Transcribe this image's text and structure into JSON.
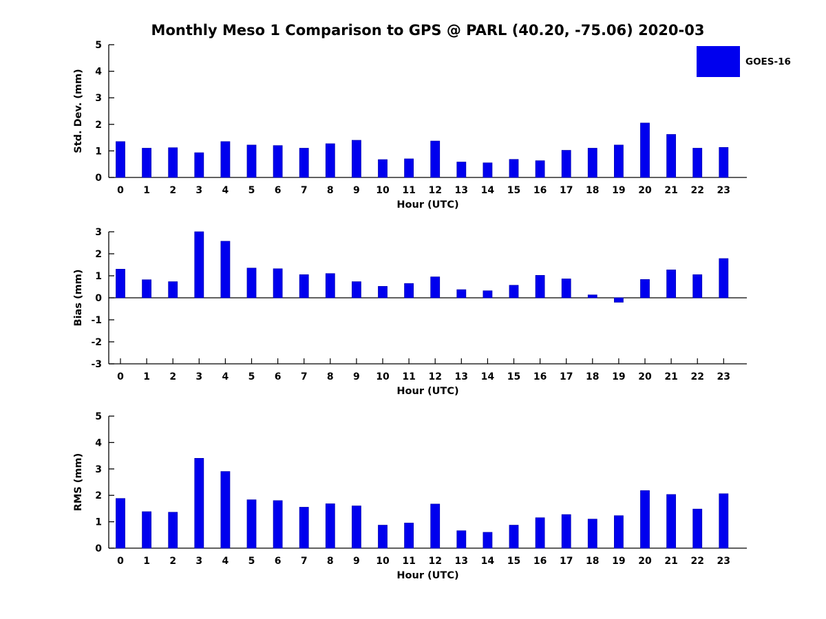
{
  "figure": {
    "title": "Monthly Meso 1 Comparison to GPS @ PARL (40.20, -75.06) 2020-03",
    "legend": {
      "label": "GOES-16",
      "color": "#0000ee",
      "position": "upper-right"
    },
    "bar_color": "#0000ee",
    "bar_edge_color": "#0000b4",
    "axis_color": "#000000",
    "background": "#ffffff"
  },
  "chart_data": [
    {
      "type": "bar",
      "title": "",
      "ylabel": "Std. Dev. (mm)",
      "xlabel": "Hour (UTC)",
      "categories": [
        "0",
        "1",
        "2",
        "3",
        "4",
        "5",
        "6",
        "7",
        "8",
        "9",
        "10",
        "11",
        "12",
        "13",
        "14",
        "15",
        "16",
        "17",
        "18",
        "19",
        "20",
        "21",
        "22",
        "23"
      ],
      "series": [
        {
          "name": "GOES-16",
          "values": [
            1.35,
            1.1,
            1.12,
            0.93,
            1.35,
            1.22,
            1.2,
            1.1,
            1.27,
            1.4,
            0.67,
            0.7,
            1.37,
            0.58,
            0.55,
            0.68,
            0.63,
            1.02,
            1.1,
            1.22,
            2.05,
            1.62,
            1.1,
            1.13
          ]
        }
      ],
      "ylim": [
        0,
        5
      ],
      "yticks": [
        0,
        1,
        2,
        3,
        4,
        5
      ],
      "grid": false,
      "show_xticks": false,
      "legend": {
        "labels": [
          "GOES-16"
        ],
        "position": "upper right"
      }
    },
    {
      "type": "bar",
      "title": "",
      "ylabel": "Bias (mm)",
      "xlabel": "Hour (UTC)",
      "categories": [
        "0",
        "1",
        "2",
        "3",
        "4",
        "5",
        "6",
        "7",
        "8",
        "9",
        "10",
        "11",
        "12",
        "13",
        "14",
        "15",
        "16",
        "17",
        "18",
        "19",
        "20",
        "21",
        "22",
        "23"
      ],
      "series": [
        {
          "name": "GOES-16",
          "values": [
            1.3,
            0.82,
            0.73,
            3.0,
            2.57,
            1.35,
            1.32,
            1.05,
            1.1,
            0.73,
            0.52,
            0.65,
            0.95,
            0.37,
            0.32,
            0.57,
            1.02,
            0.86,
            0.13,
            -0.2,
            0.83,
            1.27,
            1.05,
            1.78
          ]
        }
      ],
      "ylim": [
        -3,
        3
      ],
      "yticks": [
        -3,
        -2,
        -1,
        0,
        1,
        2,
        3
      ],
      "grid": false,
      "show_xticks": true,
      "zero_line": true
    },
    {
      "type": "bar",
      "title": "",
      "ylabel": "RMS (mm)",
      "xlabel": "Hour (UTC)",
      "categories": [
        "0",
        "1",
        "2",
        "3",
        "4",
        "5",
        "6",
        "7",
        "8",
        "9",
        "10",
        "11",
        "12",
        "13",
        "14",
        "15",
        "16",
        "17",
        "18",
        "19",
        "20",
        "21",
        "22",
        "23"
      ],
      "series": [
        {
          "name": "GOES-16",
          "values": [
            1.88,
            1.38,
            1.36,
            3.4,
            2.9,
            1.83,
            1.8,
            1.55,
            1.68,
            1.6,
            0.87,
            0.95,
            1.67,
            0.66,
            0.6,
            0.87,
            1.15,
            1.27,
            1.1,
            1.23,
            2.18,
            2.03,
            1.48,
            2.06
          ]
        }
      ],
      "ylim": [
        0,
        5
      ],
      "yticks": [
        0,
        1,
        2,
        3,
        4,
        5
      ],
      "grid": false,
      "show_xticks": false
    }
  ]
}
